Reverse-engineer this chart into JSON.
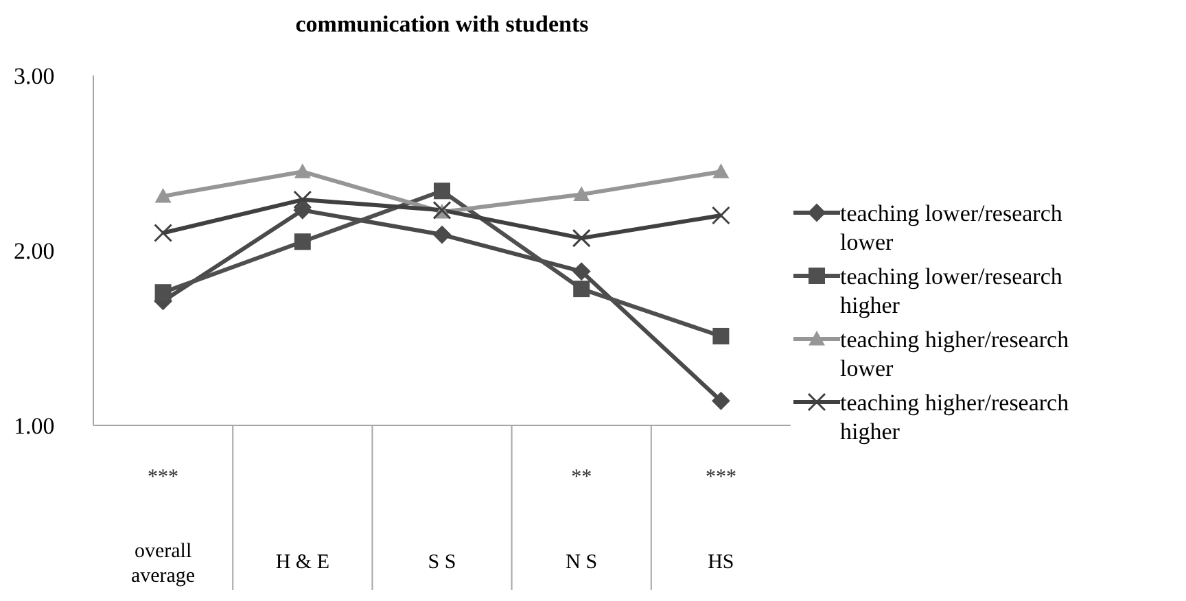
{
  "chart_data": {
    "type": "line",
    "title": "communication with students",
    "categories": [
      "overall average",
      "H & E",
      "S S",
      "N S",
      "HS"
    ],
    "annotations": [
      "***",
      null,
      null,
      "**",
      "***"
    ],
    "series": [
      {
        "name": "teaching lower/research lower",
        "color": "#4a4a4a",
        "marker": "diamond",
        "values": [
          1.71,
          2.23,
          2.09,
          1.88,
          1.14
        ]
      },
      {
        "name": "teaching lower/research higher",
        "color": "#4f4f4f",
        "marker": "square",
        "values": [
          1.76,
          2.05,
          2.34,
          1.78,
          1.51
        ]
      },
      {
        "name": "teaching higher/research lower",
        "color": "#969696",
        "marker": "triangle",
        "values": [
          2.31,
          2.45,
          2.22,
          2.32,
          2.45
        ]
      },
      {
        "name": "teaching higher/research higher",
        "color": "#404040",
        "marker": "cross",
        "values": [
          2.1,
          2.29,
          2.23,
          2.07,
          2.2
        ]
      }
    ],
    "ylim": [
      1,
      3
    ],
    "yticks": [
      {
        "value": 1,
        "label": "1.00"
      },
      {
        "value": 2,
        "label": "2.00"
      },
      {
        "value": 3,
        "label": "3.00"
      }
    ],
    "grid": false,
    "legend": "right"
  }
}
